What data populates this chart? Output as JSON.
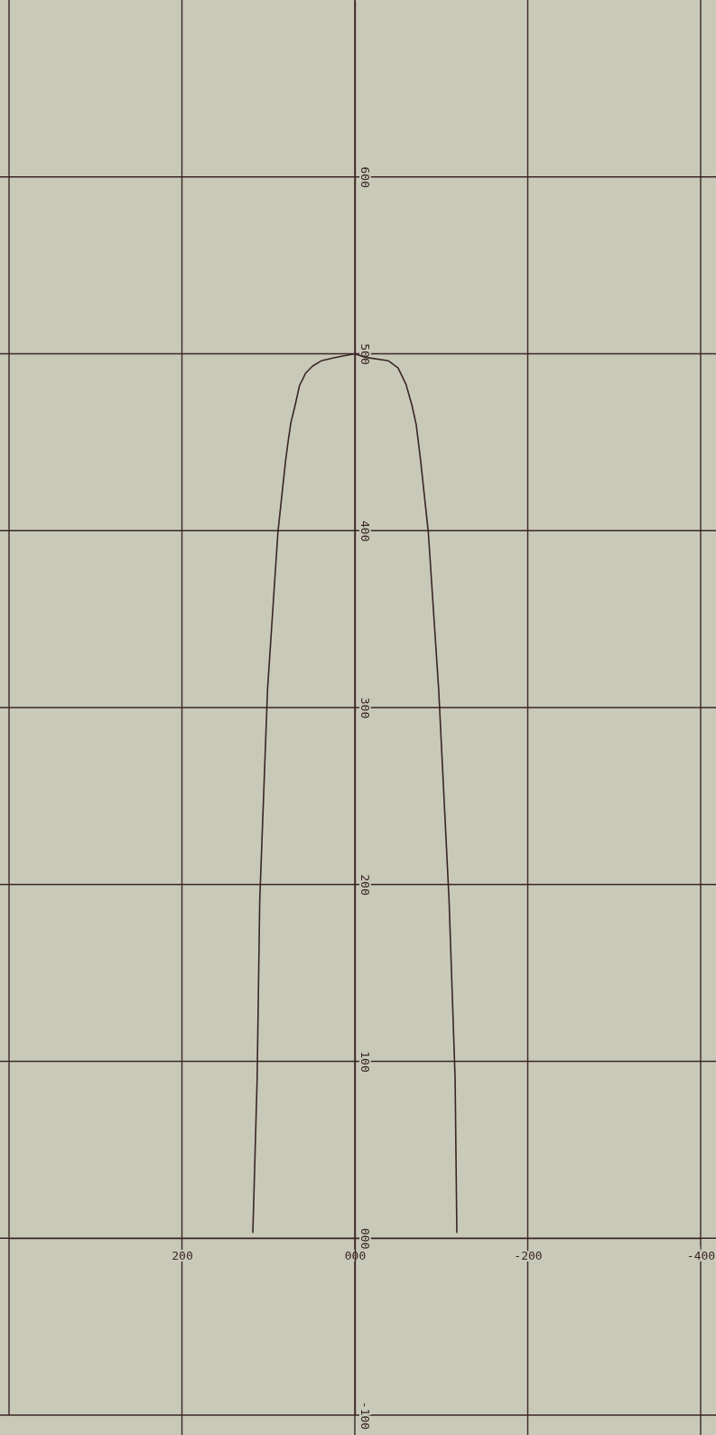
{
  "chart_data": {
    "type": "line",
    "x": [
      118,
      113,
      110,
      101,
      89,
      80,
      77,
      74,
      69,
      64,
      57,
      49,
      39,
      22,
      0,
      -12,
      -39,
      -50,
      -59,
      -66,
      -71,
      -76,
      -85,
      -97,
      -109,
      -116,
      -118
    ],
    "values": [
      3,
      90,
      191,
      310,
      399,
      440,
      451,
      461,
      471,
      482,
      489,
      493,
      496,
      498,
      500,
      498,
      496,
      492,
      483,
      471,
      460,
      440,
      399,
      310,
      191,
      90,
      3
    ],
    "color": "#3a2626",
    "xlim": [
      400,
      -400
    ],
    "xticks": [
      {
        "value": 200,
        "label": "200"
      },
      {
        "value": 0,
        "label": "000"
      },
      {
        "value": -200,
        "label": "-200"
      },
      {
        "value": -400,
        "label": "-400"
      }
    ],
    "ylim": [
      -100,
      700
    ],
    "yticks": [
      {
        "value": -100,
        "label": "-100"
      },
      {
        "value": 0,
        "label": "000"
      },
      {
        "value": 100,
        "label": "100"
      },
      {
        "value": 200,
        "label": "200"
      },
      {
        "value": 300,
        "label": "300"
      },
      {
        "value": 400,
        "label": "400"
      },
      {
        "value": 500,
        "label": "500"
      },
      {
        "value": 600,
        "label": "600"
      }
    ],
    "grid": true
  }
}
